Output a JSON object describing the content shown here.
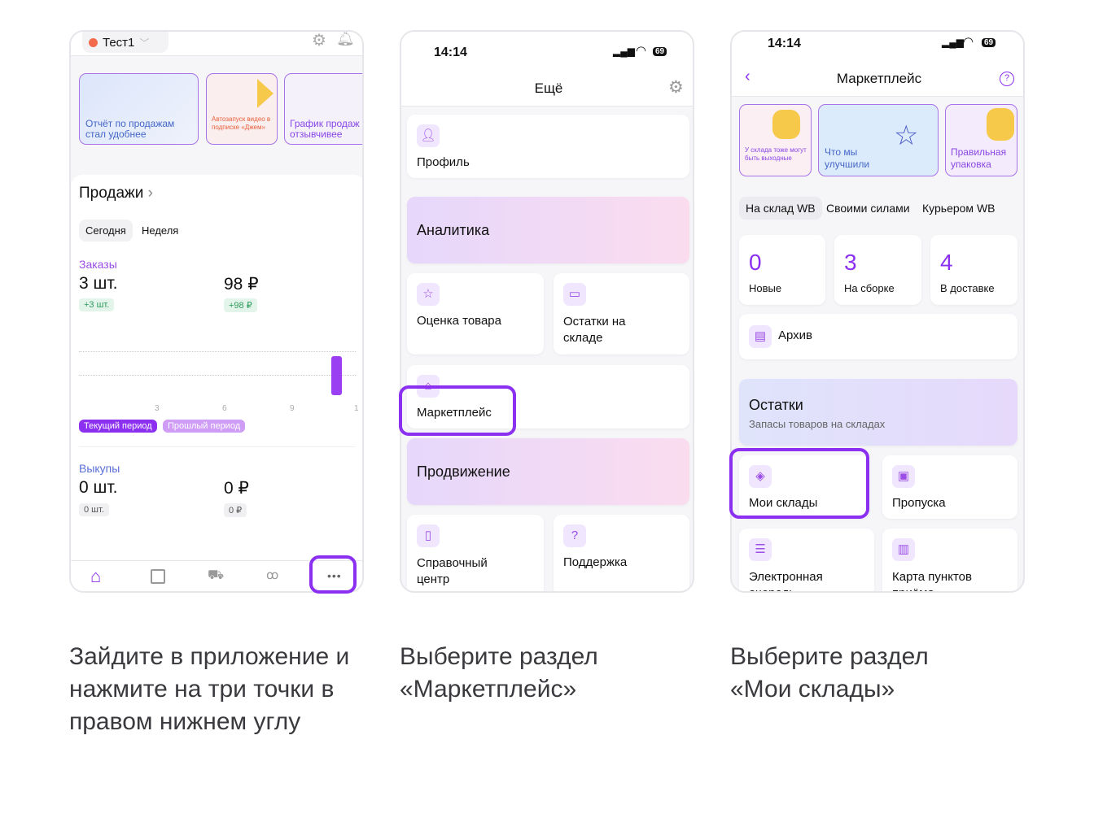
{
  "phone1": {
    "shop": "Тест1",
    "banners": [
      "Отчёт по продажам стал удобнее",
      "Автозапуск видео в подписке «Джем»",
      "График продаж стал отзывчивее"
    ],
    "sales_title": "Продажи",
    "tabs": [
      "Сегодня",
      "Неделя"
    ],
    "orders": {
      "label": "Заказы",
      "count": "3 шт.",
      "sum": "98 ₽",
      "count_delta": "+3 шт.",
      "sum_delta": "+98 ₽"
    },
    "chart_ticks": [
      "3",
      "6",
      "9",
      "1"
    ],
    "legend": [
      "Текущий период",
      "Прошлый период"
    ],
    "buyouts": {
      "label": "Выкупы",
      "count": "0 шт.",
      "sum": "0 ₽",
      "count_delta": "0 шт.",
      "sum_delta": "0 ₽"
    },
    "nav": [
      "home-icon",
      "bag-icon",
      "truck-icon",
      "users-icon",
      "more-icon"
    ],
    "more_label": "•••"
  },
  "phone2": {
    "time": "14:14",
    "battery": "69",
    "title": "Ещё",
    "items": {
      "profile": "Профиль",
      "analytics": "Аналитика",
      "rating": "Оценка товара",
      "stock": "Остатки на складе",
      "marketplace": "Маркетплейс",
      "promotion": "Продвижение",
      "help": "Справочный центр",
      "support": "Поддержка"
    }
  },
  "phone3": {
    "time": "14:14",
    "battery": "69",
    "title": "Маркетплейс",
    "banners": [
      "У склада тоже могут быть выходные",
      "Что мы улучшили",
      "Правильная упаковка"
    ],
    "tabs": [
      "На склад WB",
      "Своими силами",
      "Курьером WB"
    ],
    "stats": [
      {
        "value": "0",
        "label": "Новые"
      },
      {
        "value": "3",
        "label": "На сборке"
      },
      {
        "value": "4",
        "label": "В доставке"
      }
    ],
    "archive": "Архив",
    "stock_title": "Остатки",
    "stock_sub": "Запасы товаров на складах",
    "my_warehouses": "Мои склады",
    "passes": "Пропуска",
    "queue": "Электронная очередь",
    "map": "Карта пунктов приёма"
  },
  "captions": [
    "Зайдите в приложение и нажмите на три точки в правом нижнем углу",
    "Выберите раздел «Маркетплейс»",
    "Выберите раздел «Мои склады»"
  ],
  "colors": {
    "accent": "#8b2ff0",
    "green": "#2e9a5c"
  }
}
